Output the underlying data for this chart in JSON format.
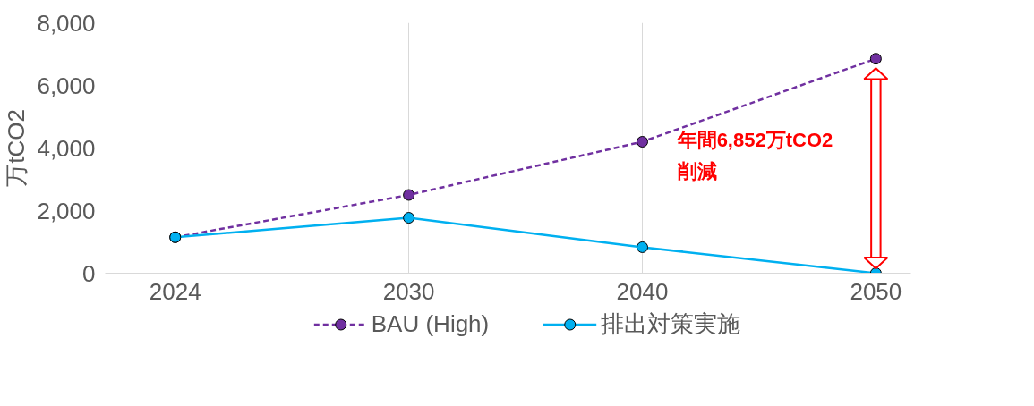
{
  "chart_data": {
    "type": "line",
    "ylabel": "万tCO2",
    "categories": [
      "2024",
      "2030",
      "2040",
      "2050"
    ],
    "series": [
      {
        "name": "BAU (High)",
        "color": "#7030a0",
        "values": [
          1150,
          2500,
          4200,
          6852
        ],
        "line_style": "dashed"
      },
      {
        "name": "排出対策実施",
        "color": "#00b0f0",
        "values": [
          1150,
          1770,
          830,
          0
        ],
        "line_style": "solid"
      }
    ],
    "ylim": [
      0,
      8000
    ],
    "yticks": [
      {
        "value": 0,
        "label": "0"
      },
      {
        "value": 2000,
        "label": "2,000"
      },
      {
        "value": 4000,
        "label": "4,000"
      },
      {
        "value": 6000,
        "label": "6,000"
      },
      {
        "value": 8000,
        "label": "8,000"
      }
    ],
    "grid": "x",
    "legend": "bottom",
    "marker": "circle",
    "annotations": [
      "年間6,852万tCO2\n削減"
    ]
  }
}
